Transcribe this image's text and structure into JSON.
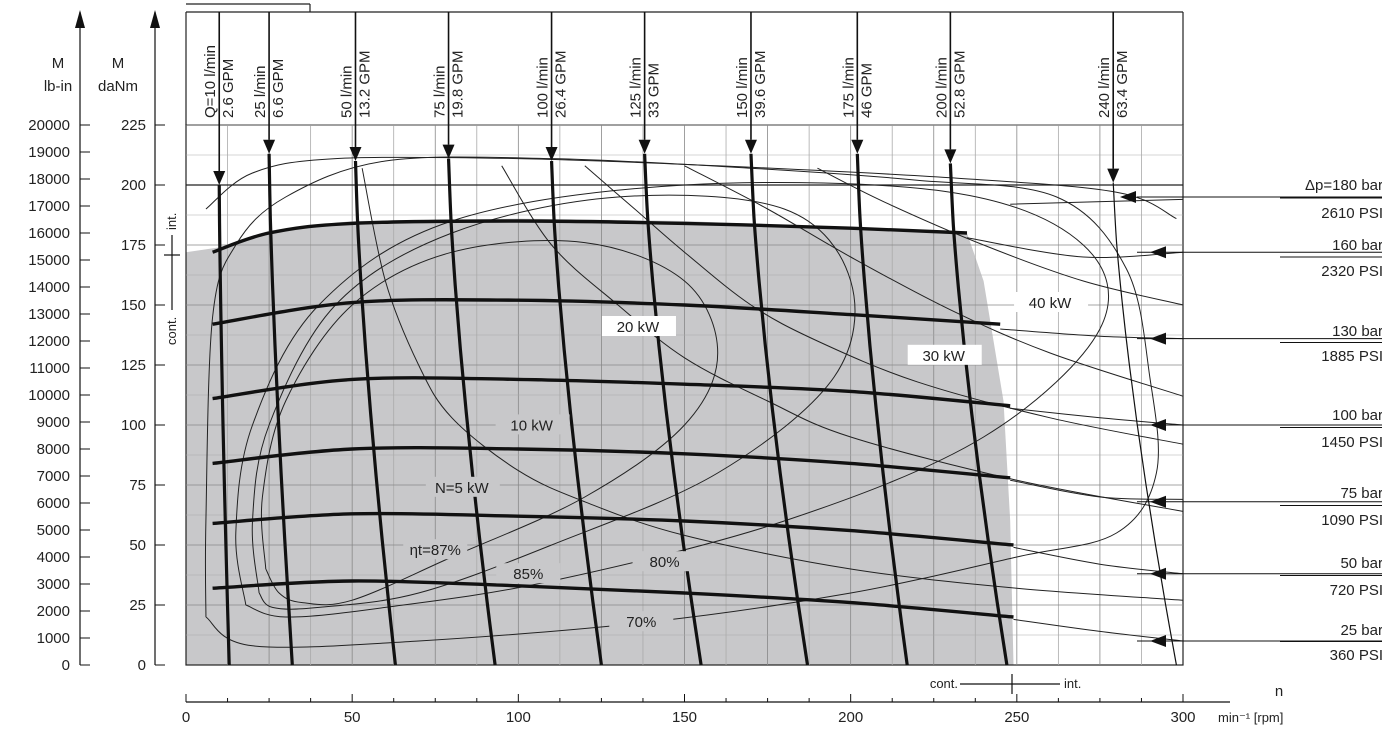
{
  "chart_data": {
    "type": "line",
    "title": "",
    "axes": {
      "x": {
        "label_n": "n",
        "unit": "min⁻¹ [rpm]",
        "range": [
          0,
          300
        ],
        "ticks": [
          0,
          50,
          100,
          150,
          200,
          250,
          300
        ]
      },
      "y_daNm": {
        "label": "M",
        "unit": "daNm",
        "range": [
          0,
          225
        ],
        "ticks": [
          0,
          25,
          50,
          75,
          100,
          125,
          150,
          175,
          200,
          225
        ]
      },
      "y_lbin": {
        "label": "M",
        "unit": "lb-in",
        "ticks": [
          0,
          1000,
          2000,
          3000,
          4000,
          5000,
          6000,
          7000,
          8000,
          9000,
          10000,
          11000,
          12000,
          13000,
          14000,
          15000,
          16000,
          17000,
          18000,
          19000,
          20000
        ]
      }
    },
    "grid": true,
    "shaded_region": "cont.",
    "flow_lines": [
      {
        "label_lmin": "Q=10 l/min",
        "label_gpm": "2.6 GPM",
        "x": [
          10,
          13
        ],
        "y": [
          200,
          0
        ]
      },
      {
        "label_lmin": "25 l/min",
        "label_gpm": "6.6 GPM",
        "x": [
          25,
          32
        ],
        "y": [
          213,
          0
        ]
      },
      {
        "label_lmin": "50 l/min",
        "label_gpm": "13.2 GPM",
        "x": [
          51,
          63
        ],
        "y": [
          210,
          0
        ]
      },
      {
        "label_lmin": "75 l/min",
        "label_gpm": "19.8 GPM",
        "x": [
          79,
          93
        ],
        "y": [
          211,
          0
        ]
      },
      {
        "label_lmin": "100 l/min",
        "label_gpm": "26.4 GPM",
        "x": [
          110,
          125
        ],
        "y": [
          210,
          0
        ]
      },
      {
        "label_lmin": "125 l/min",
        "label_gpm": "33 GPM",
        "x": [
          138,
          155
        ],
        "y": [
          213,
          0
        ]
      },
      {
        "label_lmin": "150 l/min",
        "label_gpm": "39.6 GPM",
        "x": [
          170,
          187
        ],
        "y": [
          213,
          0
        ]
      },
      {
        "label_lmin": "175 l/min",
        "label_gpm": "46 GPM",
        "x": [
          202,
          217
        ],
        "y": [
          213,
          0
        ]
      },
      {
        "label_lmin": "200 l/min",
        "label_gpm": "52.8 GPM",
        "x": [
          230,
          247
        ],
        "y": [
          209,
          0
        ]
      },
      {
        "label_lmin": "240 l/min",
        "label_gpm": "63.4 GPM",
        "x": [
          279,
          298
        ],
        "y": [
          201,
          0
        ]
      }
    ],
    "pressure_lines": [
      {
        "label_bar": "p=180 bar",
        "label_psi": "2610 PSI",
        "x": [
          8,
          300
        ],
        "y": [
          192,
          195
        ]
      },
      {
        "label_bar": "160 bar",
        "label_psi": "2320 PSI",
        "x": [
          8,
          300
        ],
        "y": [
          172,
          172
        ]
      },
      {
        "label_bar": "130 bar",
        "label_psi": "1885 PSI",
        "x": [
          8,
          300
        ],
        "y": [
          143,
          135
        ]
      },
      {
        "label_bar": "100 bar",
        "label_psi": "1450 PSI",
        "x": [
          8,
          300
        ],
        "y": [
          110,
          100
        ]
      },
      {
        "label_bar": "75 bar",
        "label_psi": "1090 PSI",
        "x": [
          8,
          300
        ],
        "y": [
          83,
          68
        ]
      },
      {
        "label_bar": "50 bar",
        "label_psi": "720 PSI",
        "x": [
          8,
          300
        ],
        "y": [
          57,
          38
        ]
      },
      {
        "label_bar": "25 bar",
        "label_psi": "360 PSI",
        "x": [
          8,
          300
        ],
        "y": [
          30,
          10
        ]
      }
    ],
    "power_labels": [
      "N=5 kW",
      "10 kW",
      "20 kW",
      "30 kW",
      "40 kW"
    ],
    "efficiency_labels": [
      "ηt=87%",
      "85%",
      "80%",
      "70%"
    ],
    "markers": {
      "int": "int.",
      "cont": "cont."
    }
  }
}
